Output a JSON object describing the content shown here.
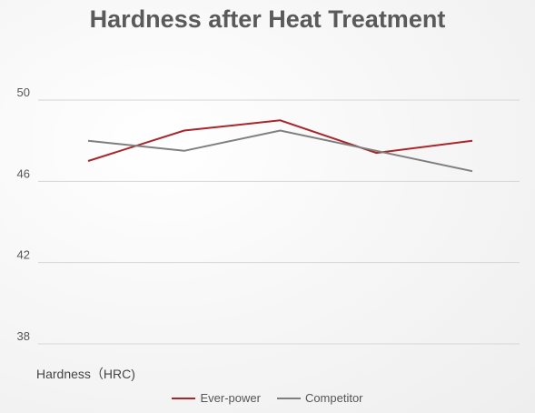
{
  "chart_data": {
    "type": "line",
    "title": "Hardness after Heat Treatment",
    "xlabel": "",
    "ylabel": "Hardness（HRC)",
    "ylim": [
      38,
      50
    ],
    "yticks": [
      "38",
      "42",
      "46",
      "50"
    ],
    "grid": true,
    "legend_placement": "bottom",
    "x": [
      1,
      2,
      3,
      4,
      5
    ],
    "series": [
      {
        "name": "Ever-power",
        "color": "#a8262c",
        "values": [
          47.0,
          48.5,
          49.0,
          47.4,
          48.0
        ]
      },
      {
        "name": "Competitor",
        "color": "#7f7f7f",
        "values": [
          48.0,
          47.5,
          48.5,
          47.5,
          46.5
        ]
      }
    ]
  }
}
